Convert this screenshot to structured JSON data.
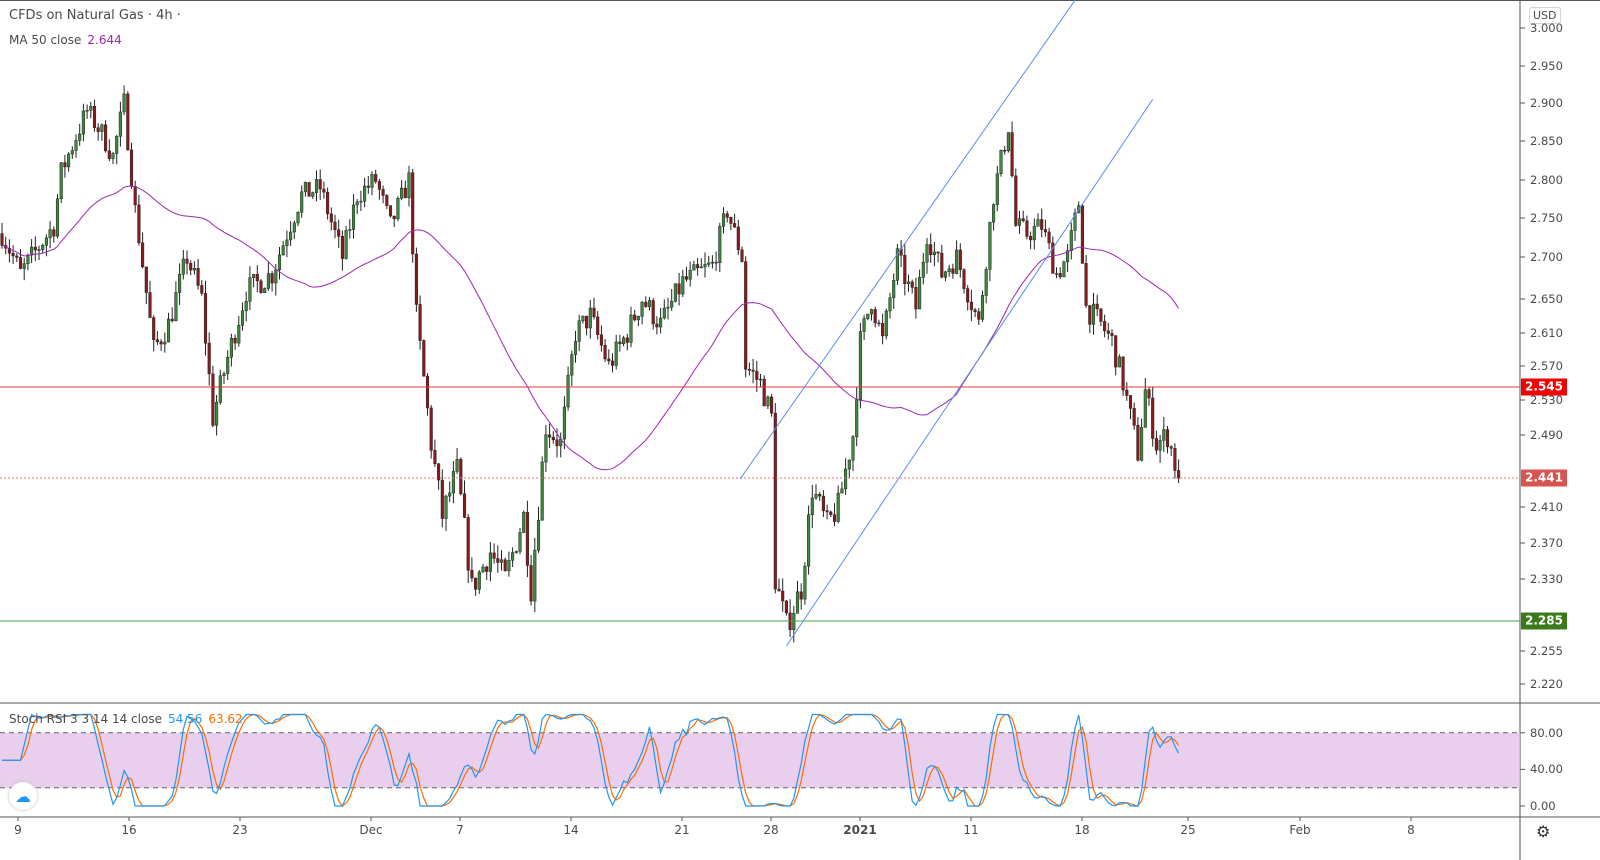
{
  "header": {
    "symbol": "CFDs on Natural Gas",
    "separator": "·",
    "interval": "4h",
    "currency": "USD"
  },
  "ma": {
    "label": "MA 50 close",
    "value": "2.644",
    "color": "#9c27b0"
  },
  "stoch": {
    "label": "Stoch RSI 3 3 14 14 close",
    "k_value": "54.56",
    "d_value": "63.62",
    "k_color": "#2196f3",
    "d_color": "#ff6d00",
    "band_color": "#e1bee7"
  },
  "price_axis": {
    "ticks": [
      "3.000",
      "2.950",
      "2.900",
      "2.850",
      "2.800",
      "2.750",
      "2.700",
      "2.650",
      "2.610",
      "2.570",
      "2.530",
      "2.490",
      "2.410",
      "2.370",
      "2.330",
      "2.255",
      "2.220"
    ]
  },
  "stoch_axis": {
    "ticks": [
      "80.00",
      "40.00",
      "0.00"
    ]
  },
  "price_tags": [
    {
      "label": "2.545",
      "value": 2.545,
      "color": "#f40000"
    },
    {
      "label": "2.441",
      "value": 2.441,
      "color": "#d9534f"
    },
    {
      "label": "2.285",
      "value": 2.285,
      "color": "#3a7a1a"
    }
  ],
  "time_axis": {
    "labels": [
      "9",
      "16",
      "23",
      "Dec",
      "7",
      "14",
      "21",
      "28",
      "2021",
      "11",
      "18",
      "25",
      "Feb",
      "8"
    ]
  },
  "chart_data": {
    "type": "candlestick",
    "title": "CFDs on Natural Gas · 4h",
    "ylim": [
      2.2,
      3.0
    ],
    "close_keypoints": [
      [
        0,
        2.73
      ],
      [
        5,
        2.68
      ],
      [
        14,
        2.74
      ],
      [
        16,
        2.81
      ],
      [
        23,
        2.89
      ],
      [
        27,
        2.86
      ],
      [
        30,
        2.83
      ],
      [
        33,
        2.9
      ],
      [
        36,
        2.76
      ],
      [
        41,
        2.59
      ],
      [
        45,
        2.62
      ],
      [
        50,
        2.7
      ],
      [
        54,
        2.65
      ],
      [
        57,
        2.51
      ],
      [
        61,
        2.58
      ],
      [
        66,
        2.66
      ],
      [
        73,
        2.68
      ],
      [
        81,
        2.78
      ],
      [
        86,
        2.79
      ],
      [
        92,
        2.7
      ],
      [
        96,
        2.78
      ],
      [
        101,
        2.8
      ],
      [
        105,
        2.74
      ],
      [
        110,
        2.8
      ],
      [
        112,
        2.63
      ],
      [
        116,
        2.48
      ],
      [
        119,
        2.4
      ],
      [
        123,
        2.45
      ],
      [
        127,
        2.32
      ],
      [
        132,
        2.36
      ],
      [
        136,
        2.33
      ],
      [
        141,
        2.4
      ],
      [
        143,
        2.32
      ],
      [
        147,
        2.5
      ],
      [
        151,
        2.48
      ],
      [
        155,
        2.61
      ],
      [
        159,
        2.63
      ],
      [
        164,
        2.57
      ],
      [
        169,
        2.61
      ],
      [
        173,
        2.65
      ],
      [
        178,
        2.62
      ],
      [
        184,
        2.67
      ],
      [
        192,
        2.69
      ],
      [
        196,
        2.76
      ],
      [
        200,
        2.7
      ],
      [
        201,
        2.57
      ],
      [
        205,
        2.55
      ],
      [
        208,
        2.51
      ],
      [
        209,
        2.33
      ],
      [
        212,
        2.28
      ],
      [
        216,
        2.32
      ],
      [
        219,
        2.43
      ],
      [
        223,
        2.39
      ],
      [
        226,
        2.41
      ],
      [
        230,
        2.49
      ],
      [
        232,
        2.6
      ],
      [
        235,
        2.65
      ],
      [
        238,
        2.6
      ],
      [
        242,
        2.7
      ],
      [
        247,
        2.64
      ],
      [
        250,
        2.73
      ],
      [
        254,
        2.68
      ],
      [
        258,
        2.7
      ],
      [
        264,
        2.62
      ],
      [
        268,
        2.78
      ],
      [
        272,
        2.87
      ],
      [
        274,
        2.74
      ],
      [
        277,
        2.73
      ],
      [
        281,
        2.74
      ],
      [
        285,
        2.68
      ],
      [
        288,
        2.7
      ],
      [
        291,
        2.77
      ],
      [
        293,
        2.64
      ],
      [
        297,
        2.62
      ],
      [
        300,
        2.6
      ],
      [
        303,
        2.55
      ],
      [
        307,
        2.47
      ],
      [
        309,
        2.54
      ],
      [
        312,
        2.48
      ],
      [
        315,
        2.49
      ],
      [
        318,
        2.441
      ]
    ],
    "horizontal_lines": [
      {
        "value": 2.545,
        "style": "solid",
        "color": "#e53935"
      },
      {
        "value": 2.441,
        "style": "dotted",
        "color": "#e57373"
      },
      {
        "value": 2.285,
        "style": "solid",
        "color": "#43a047"
      }
    ],
    "trend_lines": [
      {
        "from": [
          199.5,
          2.44
        ],
        "to": [
          290.5,
          3.04
        ]
      },
      {
        "from": [
          212,
          2.26
        ],
        "to": [
          311,
          2.905
        ]
      }
    ],
    "up_color": "#26a69a",
    "down_color": "#ef5350",
    "up_color_body": "#3c8a3c",
    "down_color_body": "#8b1a1a",
    "stoch_levels": [
      80,
      20
    ]
  }
}
